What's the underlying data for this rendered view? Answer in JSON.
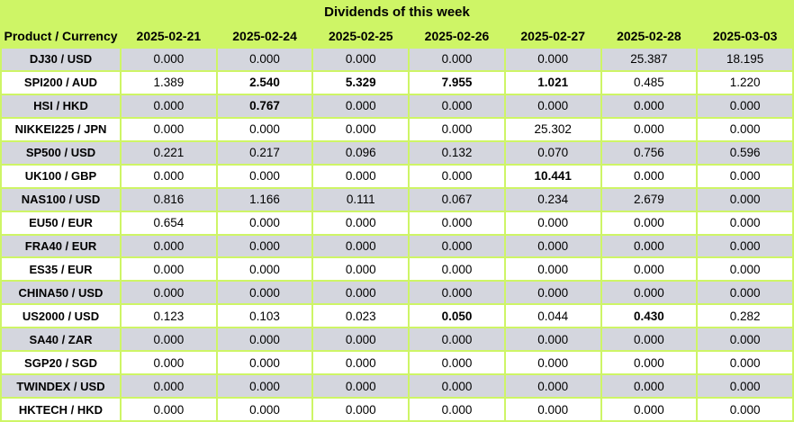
{
  "table": {
    "title": "Dividends of this week",
    "columns": [
      "Product / Currency",
      "2025-02-21",
      "2025-02-24",
      "2025-02-25",
      "2025-02-26",
      "2025-02-27",
      "2025-02-28",
      "2025-03-03"
    ],
    "rows": [
      {
        "product": "DJ30 / USD",
        "values": [
          "0.000",
          "0.000",
          "0.000",
          "0.000",
          "0.000",
          "25.387",
          "18.195"
        ],
        "bold_cols": []
      },
      {
        "product": "SPI200 / AUD",
        "values": [
          "1.389",
          "2.540",
          "5.329",
          "7.955",
          "1.021",
          "0.485",
          "1.220"
        ],
        "bold_cols": [
          1,
          2,
          3,
          4
        ]
      },
      {
        "product": "HSI / HKD",
        "values": [
          "0.000",
          "0.767",
          "0.000",
          "0.000",
          "0.000",
          "0.000",
          "0.000"
        ],
        "bold_cols": [
          1
        ]
      },
      {
        "product": "NIKKEI225 / JPN",
        "values": [
          "0.000",
          "0.000",
          "0.000",
          "0.000",
          "25.302",
          "0.000",
          "0.000"
        ],
        "bold_cols": []
      },
      {
        "product": "SP500 / USD",
        "values": [
          "0.221",
          "0.217",
          "0.096",
          "0.132",
          "0.070",
          "0.756",
          "0.596"
        ],
        "bold_cols": []
      },
      {
        "product": "UK100 / GBP",
        "values": [
          "0.000",
          "0.000",
          "0.000",
          "0.000",
          "10.441",
          "0.000",
          "0.000"
        ],
        "bold_cols": [
          4
        ]
      },
      {
        "product": "NAS100 / USD",
        "values": [
          "0.816",
          "1.166",
          "0.111",
          "0.067",
          "0.234",
          "2.679",
          "0.000"
        ],
        "bold_cols": []
      },
      {
        "product": "EU50 / EUR",
        "values": [
          "0.654",
          "0.000",
          "0.000",
          "0.000",
          "0.000",
          "0.000",
          "0.000"
        ],
        "bold_cols": []
      },
      {
        "product": "FRA40 / EUR",
        "values": [
          "0.000",
          "0.000",
          "0.000",
          "0.000",
          "0.000",
          "0.000",
          "0.000"
        ],
        "bold_cols": []
      },
      {
        "product": "ES35 / EUR",
        "values": [
          "0.000",
          "0.000",
          "0.000",
          "0.000",
          "0.000",
          "0.000",
          "0.000"
        ],
        "bold_cols": []
      },
      {
        "product": "CHINA50 / USD",
        "values": [
          "0.000",
          "0.000",
          "0.000",
          "0.000",
          "0.000",
          "0.000",
          "0.000"
        ],
        "bold_cols": []
      },
      {
        "product": "US2000 / USD",
        "values": [
          "0.123",
          "0.103",
          "0.023",
          "0.050",
          "0.044",
          "0.430",
          "0.282"
        ],
        "bold_cols": [
          3,
          5
        ]
      },
      {
        "product": "SA40 / ZAR",
        "values": [
          "0.000",
          "0.000",
          "0.000",
          "0.000",
          "0.000",
          "0.000",
          "0.000"
        ],
        "bold_cols": []
      },
      {
        "product": "SGP20 / SGD",
        "values": [
          "0.000",
          "0.000",
          "0.000",
          "0.000",
          "0.000",
          "0.000",
          "0.000"
        ],
        "bold_cols": []
      },
      {
        "product": "TWINDEX / USD",
        "values": [
          "0.000",
          "0.000",
          "0.000",
          "0.000",
          "0.000",
          "0.000",
          "0.000"
        ],
        "bold_cols": []
      },
      {
        "product": "HKTECH / HKD",
        "values": [
          "0.000",
          "0.000",
          "0.000",
          "0.000",
          "0.000",
          "0.000",
          "0.000"
        ],
        "bold_cols": []
      }
    ]
  },
  "colors": {
    "header_green": "#CEF566",
    "row_gray": "#D4D6DE",
    "row_white": "#FFFFFF",
    "border_green": "#CEF566",
    "text": "#000000"
  }
}
